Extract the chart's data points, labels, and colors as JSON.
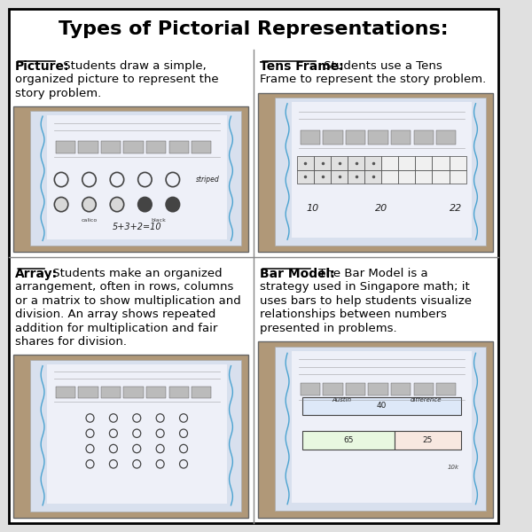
{
  "title": "Types of Pictorial Representations:",
  "title_fontsize": 16,
  "title_fontweight": "bold",
  "background_color": "#ffffff",
  "border_color": "#000000",
  "outer_bg": "#e0e0e0",
  "cells": [
    {
      "label": "Picture:",
      "text": "Students draw a simple,\norganized picture to represent the\nstory problem.",
      "row": 0,
      "col": 0
    },
    {
      "label": "Tens Frame:",
      "text": "Students use a Tens\nFrame to represent the story problem.",
      "row": 0,
      "col": 1
    },
    {
      "label": "Array:",
      "text": "Students make an organized\narrangement, often in rows, columns\nor a matrix to show multiplication and\ndivision. An array shows repeated\naddition for multiplication and fair\nshares for division.",
      "row": 1,
      "col": 0
    },
    {
      "label": "Bar Model:",
      "text": "The Bar Model is a\nstrategy used in Singapore math; it\nuses bars to help students visualize\nrelationships between numbers\npresented in problems.",
      "row": 1,
      "col": 1
    }
  ],
  "label_fontsize": 10,
  "text_fontsize": 9.5,
  "cell_text_color": "#000000"
}
